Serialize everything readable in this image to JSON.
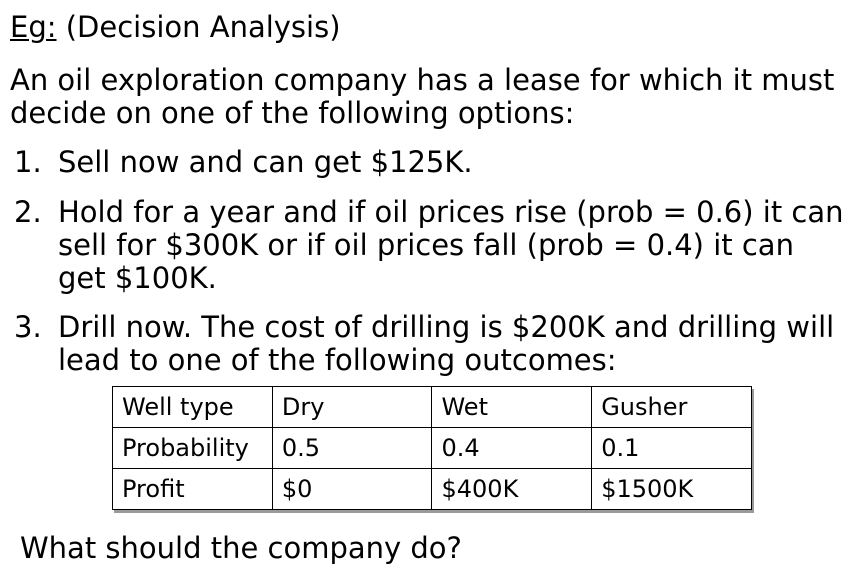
{
  "title": {
    "prefix": "Eg:",
    "text": " (Decision Analysis)"
  },
  "intro": "An oil exploration company has a lease for which it must decide on one of the following options:",
  "options": [
    {
      "num": "1.",
      "text": "Sell now and can get $125K."
    },
    {
      "num": "2.",
      "text": "Hold for a year and if oil prices rise (prob = 0.6) it can sell for $300K or if oil prices fall (prob = 0.4) it can get $100K."
    },
    {
      "num": "3.",
      "text": "Drill now. The cost of drilling is $200K and drilling will lead to one of the following outcomes:"
    }
  ],
  "table": {
    "rows": [
      [
        "Well type",
        "Dry",
        "Wet",
        "Gusher"
      ],
      [
        "Probability",
        "0.5",
        "0.4",
        "0.1"
      ],
      [
        "Profit",
        "$0",
        "$400K",
        "$1500K"
      ]
    ]
  },
  "question": "What should the company do?"
}
